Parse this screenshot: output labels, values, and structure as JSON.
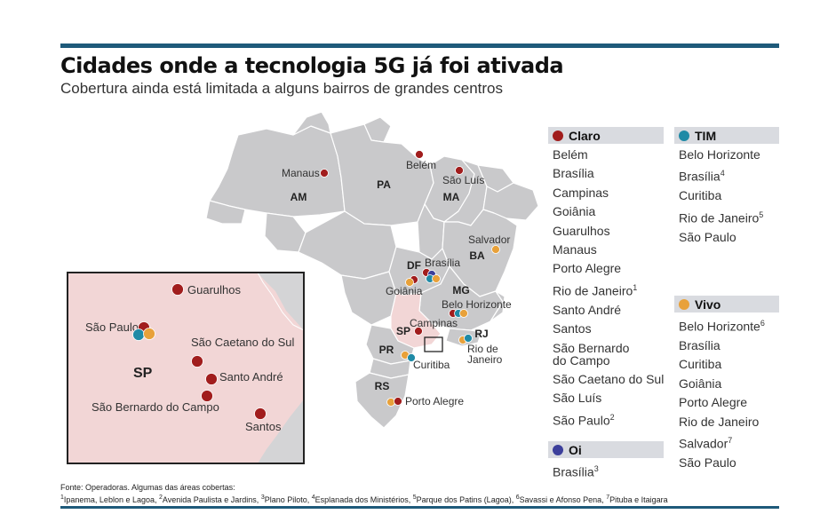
{
  "header": {
    "title": "Cidades onde a tecnologia 5G já foi ativada",
    "subtitle": "Cobertura ainda está limitada a alguns bairros de grandes centros"
  },
  "colors": {
    "claro": "#a11d1d",
    "tim": "#1f8aa6",
    "vivo": "#e8a13a",
    "oi": "#3c3f9b",
    "bar": "#1e5a7a",
    "map_fill": "#c9c9cb",
    "sp_highlight": "#f2d6d6"
  },
  "map": {
    "states": [
      "AM",
      "PA",
      "MA",
      "BA",
      "DF",
      "MG",
      "SP",
      "RJ",
      "PR",
      "RS"
    ],
    "cities": [
      "Manaus",
      "Belém",
      "São Luís",
      "Salvador",
      "Brasília",
      "Goiânia",
      "Belo Horizonte",
      "Campinas",
      "Rio de Janeiro",
      "Curitiba",
      "Porto Alegre"
    ]
  },
  "inset": {
    "state": "SP",
    "cities": [
      "Guarulhos",
      "São Paulo",
      "São Caetano do Sul",
      "Santo André",
      "São Bernardo do Campo",
      "Santos"
    ]
  },
  "legend": {
    "claro": {
      "name": "Claro",
      "items": [
        {
          "city": "Belém",
          "note": ""
        },
        {
          "city": "Brasília",
          "note": ""
        },
        {
          "city": "Campinas",
          "note": ""
        },
        {
          "city": "Goiânia",
          "note": ""
        },
        {
          "city": "Guarulhos",
          "note": ""
        },
        {
          "city": "Manaus",
          "note": ""
        },
        {
          "city": "Porto Alegre",
          "note": ""
        },
        {
          "city": "Rio de Janeiro",
          "note": "1"
        },
        {
          "city": "Santo André",
          "note": ""
        },
        {
          "city": "Santos",
          "note": ""
        },
        {
          "city": "São Bernardo do Campo",
          "note": ""
        },
        {
          "city": "São Caetano do Sul",
          "note": ""
        },
        {
          "city": "São Luís",
          "note": ""
        },
        {
          "city": "São Paulo",
          "note": "2"
        }
      ]
    },
    "tim": {
      "name": "TIM",
      "items": [
        {
          "city": "Belo Horizonte",
          "note": ""
        },
        {
          "city": "Brasília",
          "note": "4"
        },
        {
          "city": "Curitiba",
          "note": ""
        },
        {
          "city": "Rio de Janeiro",
          "note": "5"
        },
        {
          "city": "São Paulo",
          "note": ""
        }
      ]
    },
    "vivo": {
      "name": "Vivo",
      "items": [
        {
          "city": "Belo Horizonte",
          "note": "6"
        },
        {
          "city": "Brasília",
          "note": ""
        },
        {
          "city": "Curitiba",
          "note": ""
        },
        {
          "city": "Goiânia",
          "note": ""
        },
        {
          "city": "Porto Alegre",
          "note": ""
        },
        {
          "city": "Rio de Janeiro",
          "note": ""
        },
        {
          "city": "Salvador",
          "note": "7"
        },
        {
          "city": "São Paulo",
          "note": ""
        }
      ]
    },
    "oi": {
      "name": "Oi",
      "items": [
        {
          "city": "Brasília",
          "note": "3"
        }
      ]
    }
  },
  "source": {
    "line1": "Fonte: Operadoras. Algumas das áreas cobertas:",
    "notes": [
      {
        "n": "1",
        "text": "Ipanema, Leblon e Lagoa, "
      },
      {
        "n": "2",
        "text": "Avenida Paulista e Jardins, "
      },
      {
        "n": "3",
        "text": "Plano Piloto, "
      },
      {
        "n": "4",
        "text": "Esplanada dos Ministérios, "
      },
      {
        "n": "5",
        "text": "Parque dos Patins (Lagoa), "
      },
      {
        "n": "6",
        "text": "Savassi e Afonso Pena, "
      },
      {
        "n": "7",
        "text": "Pituba e Itaigara"
      }
    ]
  }
}
